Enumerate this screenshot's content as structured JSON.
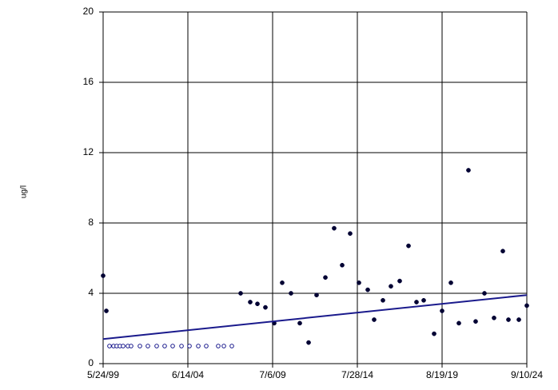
{
  "chart_data": {
    "type": "scatter",
    "y_label": "ug/l",
    "xlim": [
      36304,
      45544
    ],
    "xticks": [
      {
        "value": 36304,
        "label": "5/24/99"
      },
      {
        "value": 38152,
        "label": "6/14/04"
      },
      {
        "value": 40000,
        "label": "7/6/09"
      },
      {
        "value": 41848,
        "label": "7/28/14"
      },
      {
        "value": 43696,
        "label": "8/19/19"
      },
      {
        "value": 45544,
        "label": "9/10/24"
      }
    ],
    "ylim": [
      0,
      20
    ],
    "yticks": [
      0,
      4,
      8,
      12,
      16,
      20
    ],
    "grid": true,
    "series": [
      {
        "type": "scatter",
        "marker": "filled",
        "color": "#000033",
        "x": [
          36304,
          36374,
          39303,
          39512,
          39669,
          39843,
          40035,
          40209,
          40401,
          40593,
          40785,
          40959,
          41151,
          41342,
          41517,
          41691,
          41883,
          42075,
          42214,
          42406,
          42580,
          42772,
          42964,
          43138,
          43295,
          43522,
          43696,
          43888,
          44062,
          44271,
          44428,
          44620,
          44829,
          45021,
          45143,
          45370,
          45544
        ],
        "values": [
          5.0,
          3.0,
          4.0,
          3.5,
          3.4,
          3.2,
          2.3,
          4.6,
          4.0,
          2.3,
          1.2,
          3.9,
          4.9,
          7.7,
          5.6,
          7.4,
          4.6,
          4.2,
          2.5,
          3.6,
          4.4,
          4.7,
          6.7,
          3.5,
          3.6,
          1.7,
          3.0,
          4.6,
          2.3,
          11.0,
          2.4,
          4.0,
          2.6,
          6.4,
          2.5,
          2.5,
          3.3
        ]
      },
      {
        "type": "scatter",
        "marker": "open",
        "color": "#000080",
        "x": [
          36443,
          36531,
          36600,
          36670,
          36740,
          36844,
          36914,
          37106,
          37280,
          37472,
          37646,
          37821,
          38013,
          38187,
          38379,
          38553,
          38814,
          38937,
          39111
        ],
        "values": [
          1,
          1,
          1,
          1,
          1,
          1,
          1,
          1,
          1,
          1,
          1,
          1,
          1,
          1,
          1,
          1,
          1,
          1,
          1
        ]
      },
      {
        "type": "line",
        "color": "#1a1a8c",
        "x": [
          36304,
          45544
        ],
        "values": [
          1.4,
          3.9
        ]
      }
    ]
  }
}
